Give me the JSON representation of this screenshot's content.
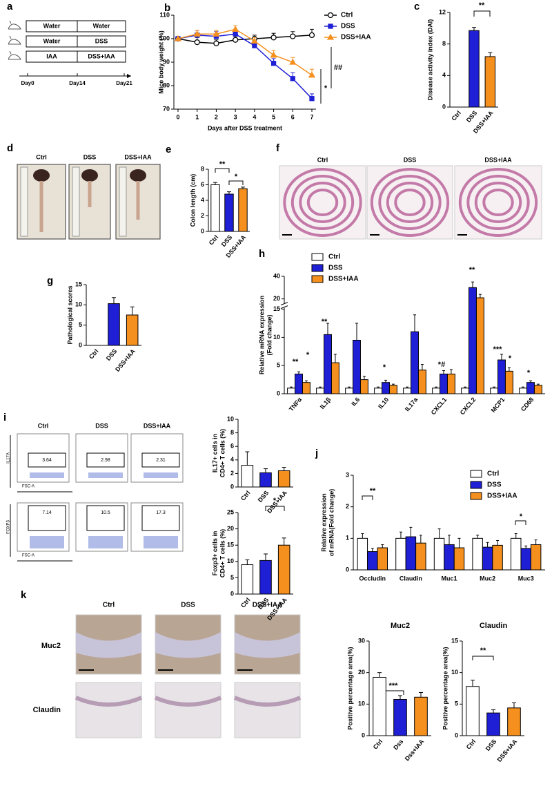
{
  "figure": {
    "panel_a": {
      "label": "a",
      "rows": [
        [
          "Water",
          "Water"
        ],
        [
          "Water",
          "DSS"
        ],
        [
          "IAA",
          "DSS+IAA"
        ]
      ],
      "days": [
        "Day0",
        "Day14",
        "Day21"
      ]
    },
    "panel_d": {
      "label": "d",
      "groups": [
        "Ctrl",
        "DSS",
        "DSS+IAA"
      ]
    },
    "panel_f": {
      "label": "f",
      "groups": [
        "Ctrl",
        "DSS",
        "DSS+IAA"
      ]
    },
    "panel_i": {
      "label": "i",
      "groups": [
        "Ctrl",
        "DSS",
        "DSS+IAA"
      ],
      "percentages": [
        3.64,
        2.98,
        2.31,
        7.14,
        10.5,
        17.3
      ],
      "axis_labels": [
        "IL17A",
        "FSC-A",
        "FOXP3",
        "FSC-A"
      ]
    },
    "panel_k": {
      "label": "k",
      "groups": [
        "Ctrl",
        "DSS",
        "DSS+IAA"
      ],
      "stains": [
        "Muc2",
        "Claudin"
      ]
    }
  },
  "chart_data": [
    {
      "type": "line",
      "label": "b",
      "xlabel": "Days after DSS treatment",
      "ylabel": "Mice body weight (%)",
      "x": [
        0,
        1,
        2,
        3,
        4,
        5,
        6,
        7
      ],
      "xlim": [
        0,
        7
      ],
      "xticks": [
        0,
        1,
        2,
        3,
        4,
        5,
        6,
        7
      ],
      "ylim": [
        70,
        110
      ],
      "yticks": [
        70,
        80,
        90,
        100,
        110
      ],
      "legend": "right",
      "series": [
        {
          "name": "Ctrl",
          "color": "#000000",
          "fill": "#ffffff",
          "marker": "circle",
          "values": [
            100,
            98.5,
            98,
            99.5,
            100,
            100.5,
            101,
            101.5
          ],
          "errors": [
            0,
            2,
            1.5,
            1.5,
            1.5,
            1.8,
            2,
            2.5
          ]
        },
        {
          "name": "DSS",
          "color": "#1f1fd6",
          "fill": "#1f1fd6",
          "marker": "square",
          "values": [
            100,
            101.5,
            101,
            102,
            97,
            89.5,
            83,
            74.5
          ],
          "errors": [
            0,
            2,
            2,
            1.5,
            2,
            2,
            2.5,
            2
          ]
        },
        {
          "name": "DSS+IAA",
          "color": "#f5901e",
          "fill": "#f5901e",
          "marker": "triangle",
          "values": [
            100,
            102,
            102,
            104,
            99,
            93,
            90,
            84.5
          ],
          "errors": [
            0,
            1.5,
            1.5,
            1.5,
            1.5,
            2,
            2,
            2.5
          ]
        }
      ],
      "annotations": [
        "##",
        "*"
      ]
    },
    {
      "type": "bar",
      "label": "c",
      "ylabel": "Disease activity index (DAI)",
      "categories": [
        "Ctrl",
        "DSS",
        "DSS+IAA"
      ],
      "values": [
        0,
        9.7,
        6.4
      ],
      "errors": [
        0,
        0.4,
        0.5
      ],
      "colors": [
        "#ffffff",
        "#1f1fd6",
        "#f5901e"
      ],
      "ylim": [
        0,
        12
      ],
      "yticks": [
        0,
        4,
        8,
        12
      ],
      "annotations": [
        "**"
      ]
    },
    {
      "type": "bar",
      "label": "e",
      "ylabel": "Colon length (cm)",
      "categories": [
        "Ctrl",
        "DSS",
        "DSS+IAA"
      ],
      "values": [
        6.0,
        4.8,
        5.5
      ],
      "errors": [
        0.3,
        0.3,
        0.2
      ],
      "colors": [
        "#ffffff",
        "#1f1fd6",
        "#f5901e"
      ],
      "ylim": [
        0,
        8
      ],
      "yticks": [
        0,
        2,
        4,
        6,
        8
      ],
      "annotations": [
        "**",
        "*"
      ]
    },
    {
      "type": "bar",
      "label": "g",
      "ylabel": "Pathological scores",
      "categories": [
        "Ctrl",
        "DSS",
        "DSS+IAA"
      ],
      "values": [
        0,
        10.3,
        7.5
      ],
      "errors": [
        0,
        1.5,
        2
      ],
      "colors": [
        "#ffffff",
        "#1f1fd6",
        "#f5901e"
      ],
      "ylim": [
        0,
        15
      ],
      "yticks": [
        0,
        5,
        10,
        15
      ]
    },
    {
      "type": "bar",
      "label": "h",
      "ylabel": [
        "Relative mRNA expression",
        "(Fold change)"
      ],
      "categories": [
        "TNFα",
        "IL1β",
        "IL6",
        "IL10",
        "IL17a",
        "CXCL1",
        "CXCL2",
        "MCP1",
        "CD68"
      ],
      "ylim": [
        0,
        40
      ],
      "ybreak": [
        15,
        17
      ],
      "yticks": [
        0,
        5,
        10,
        15,
        20,
        40
      ],
      "legend": "top-left",
      "series": [
        {
          "name": "Ctrl",
          "color": "#ffffff",
          "values": [
            1,
            1,
            1,
            1,
            1,
            1,
            1,
            1,
            1
          ],
          "errors": [
            0.2,
            0.2,
            0.2,
            0.2,
            0.2,
            0.2,
            0.2,
            0.2,
            0.2
          ]
        },
        {
          "name": "DSS",
          "color": "#1f1fd6",
          "values": [
            3.5,
            10.5,
            9.5,
            2.0,
            11,
            3.5,
            30,
            6,
            2
          ],
          "errors": [
            0.4,
            2,
            3,
            0.4,
            3,
            0.6,
            5,
            1,
            0.3
          ]
        },
        {
          "name": "DSS+IAA",
          "color": "#f5901e",
          "values": [
            2,
            5.5,
            2.5,
            1.5,
            4.2,
            3.5,
            21,
            4,
            1.5
          ],
          "errors": [
            0.3,
            1.5,
            0.6,
            0.2,
            1,
            0.8,
            3,
            0.6,
            0.2
          ]
        }
      ],
      "annotations": [
        "**",
        "*",
        "**",
        "*",
        "*#",
        "**",
        "***",
        "*",
        "*"
      ]
    },
    {
      "type": "bar",
      "ylabel": [
        "IL17+ cells in",
        "CD4+ T cells (%)"
      ],
      "categories": [
        "Ctrl",
        "DSS",
        "DSS+IAA"
      ],
      "values": [
        3.2,
        2.1,
        2.4
      ],
      "errors": [
        2,
        0.6,
        0.5
      ],
      "colors": [
        "#ffffff",
        "#1f1fd6",
        "#f5901e"
      ],
      "ylim": [
        0,
        10
      ],
      "yticks": [
        0,
        2,
        4,
        6,
        8,
        10
      ]
    },
    {
      "type": "bar",
      "ylabel": [
        "Foxp3+ cells in",
        "CD4+ T cells (%)"
      ],
      "categories": [
        "Ctrl",
        "DSS",
        "DSS+IAA"
      ],
      "values": [
        9,
        10.3,
        15
      ],
      "errors": [
        1.5,
        2,
        2.2
      ],
      "colors": [
        "#ffffff",
        "#1f1fd6",
        "#f5901e"
      ],
      "ylim": [
        0,
        25
      ],
      "yticks": [
        0,
        5,
        10,
        15,
        20,
        25
      ],
      "annotations": [
        "*"
      ]
    },
    {
      "type": "bar",
      "label": "j",
      "ylabel": [
        "Relative expression",
        "of mRNA(Fold change)"
      ],
      "categories": [
        "Occludin",
        "Claudin",
        "Muc1",
        "Muc2",
        "Muc3"
      ],
      "ylim": [
        0,
        3
      ],
      "yticks": [
        0,
        1,
        2,
        3
      ],
      "legend": "top-right",
      "series": [
        {
          "name": "Ctrl",
          "color": "#ffffff",
          "values": [
            1,
            1,
            1,
            1,
            1
          ],
          "errors": [
            0.15,
            0.2,
            0.3,
            0.1,
            0.15
          ]
        },
        {
          "name": "DSS",
          "color": "#1f1fd6",
          "values": [
            0.58,
            1.05,
            0.8,
            0.72,
            0.68
          ],
          "errors": [
            0.1,
            0.3,
            0.3,
            0.15,
            0.08
          ]
        },
        {
          "name": "DSS+IAA",
          "color": "#f5901e",
          "values": [
            0.7,
            0.85,
            0.7,
            0.78,
            0.8
          ],
          "errors": [
            0.1,
            0.25,
            0.3,
            0.15,
            0.15
          ]
        }
      ],
      "annotations": [
        "**",
        "*"
      ]
    },
    {
      "type": "bar",
      "title": "Muc2",
      "ylabel": "Positive percentage area(%)",
      "categories": [
        "Ctrl",
        "Dss",
        "Dss+IAA"
      ],
      "values": [
        18.5,
        11.5,
        12.2
      ],
      "errors": [
        1.5,
        1.2,
        1.5
      ],
      "colors": [
        "#ffffff",
        "#1f1fd6",
        "#f5901e"
      ],
      "ylim": [
        0,
        30
      ],
      "yticks": [
        0,
        10,
        20,
        30
      ],
      "annotations": [
        "***"
      ]
    },
    {
      "type": "bar",
      "title": "Claudin",
      "ylabel": "Positive percentage area(%)",
      "categories": [
        "Ctrl",
        "DSS",
        "DSS+IAA"
      ],
      "values": [
        7.8,
        3.6,
        4.4
      ],
      "errors": [
        1,
        0.5,
        0.8
      ],
      "colors": [
        "#ffffff",
        "#1f1fd6",
        "#f5901e"
      ],
      "ylim": [
        0,
        15
      ],
      "yticks": [
        0,
        5,
        10,
        15
      ],
      "annotations": [
        "**"
      ]
    }
  ]
}
